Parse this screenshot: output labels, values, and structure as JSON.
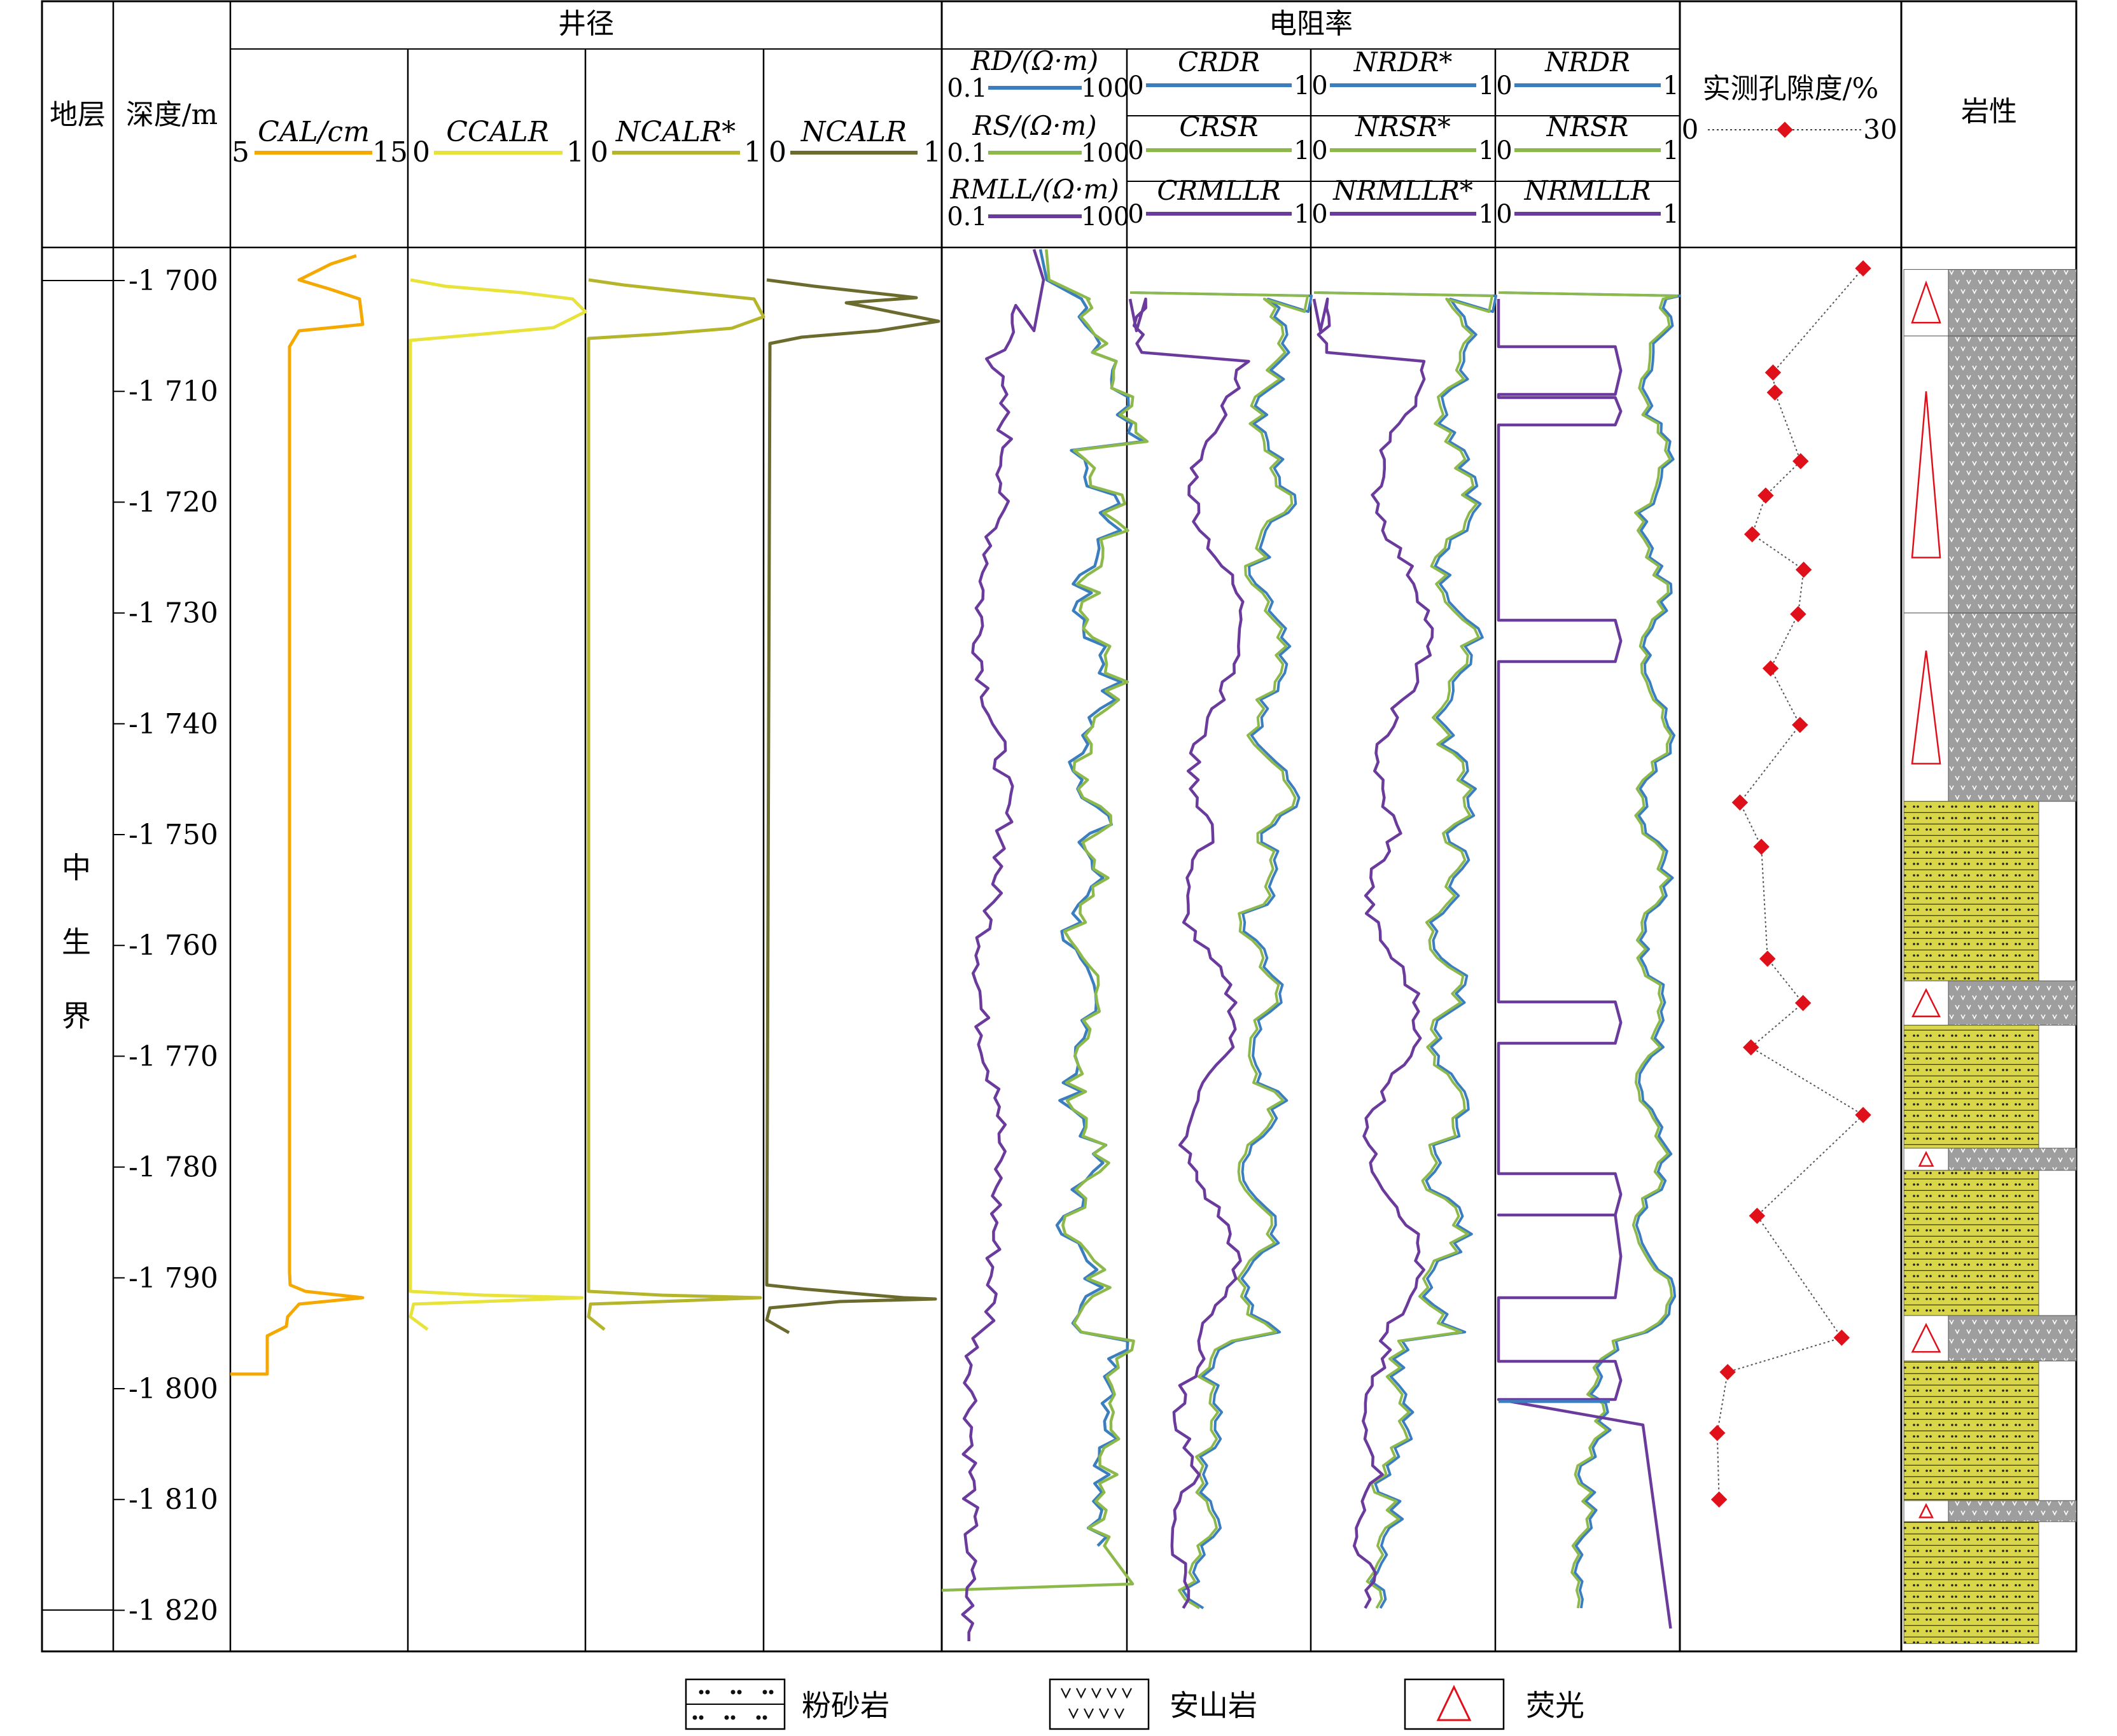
{
  "header": {
    "strata_title": "地层",
    "depth_title": "深度/m",
    "caliper_group_title": "井径",
    "resistivity_group_title": "电阻率",
    "porosity_title": "实测孔隙度/%",
    "porosity_min": "0",
    "porosity_max": "30",
    "lithology_title": "岩性"
  },
  "tracks": {
    "cal": {
      "label": "CAL/cm",
      "min": "5",
      "max": "15",
      "color": "#F5A800"
    },
    "ccalr": {
      "label": "CCALR",
      "min": "0",
      "max": "1",
      "color": "#E7E33A"
    },
    "ncalr_star": {
      "label": "NCALR*",
      "min": "0",
      "max": "1",
      "color": "#B5B52C"
    },
    "ncalr": {
      "label": "NCALR",
      "min": "0",
      "max": "1",
      "color": "#6B6B2E"
    },
    "raw": [
      {
        "label": "RD/(Ω·m)",
        "min": "0.1",
        "max": "100",
        "color": "#3B7EC0"
      },
      {
        "label": "RS/(Ω·m)",
        "min": "0.1",
        "max": "100",
        "color": "#8DB94B"
      },
      {
        "label": "RMLL/(Ω·m)",
        "min": "0.1",
        "max": "100",
        "color": "#6A3A9C"
      }
    ],
    "c": [
      {
        "label": "CRDR",
        "min": "0",
        "max": "1"
      },
      {
        "label": "CRSR",
        "min": "0",
        "max": "1"
      },
      {
        "label": "CRMLLR",
        "min": "0",
        "max": "1"
      }
    ],
    "nstar": [
      {
        "label": "NRDR*",
        "min": "0",
        "max": "1"
      },
      {
        "label": "NRSR*",
        "min": "0",
        "max": "1"
      },
      {
        "label": "NRMLLR*",
        "min": "0",
        "max": "1"
      }
    ],
    "n": [
      {
        "label": "NRDR",
        "min": "0",
        "max": "1"
      },
      {
        "label": "NRSR",
        "min": "0",
        "max": "1"
      },
      {
        "label": "NRMLLR",
        "min": "0",
        "max": "1"
      }
    ]
  },
  "stratum": {
    "chars": [
      "中",
      "生",
      "界"
    ]
  },
  "legend": {
    "siltstone": "粉砂岩",
    "andesite": "安山岩",
    "fluorescence": "荧光"
  },
  "chart_data": {
    "type": "line",
    "depth_range": [
      1697,
      1822
    ],
    "depth_ticks": [
      {
        "value": 1700,
        "label": "-1 700"
      },
      {
        "value": 1710,
        "label": "-1 710"
      },
      {
        "value": 1720,
        "label": "-1 720"
      },
      {
        "value": 1730,
        "label": "-1 730"
      },
      {
        "value": 1740,
        "label": "-1 740"
      },
      {
        "value": 1750,
        "label": "-1 750"
      },
      {
        "value": 1760,
        "label": "-1 760"
      },
      {
        "value": 1770,
        "label": "-1 770"
      },
      {
        "value": 1780,
        "label": "-1 780"
      },
      {
        "value": 1790,
        "label": "-1 790"
      },
      {
        "value": 1800,
        "label": "-1 800"
      },
      {
        "value": 1810,
        "label": "-1 810"
      },
      {
        "value": 1820,
        "label": "-1 820"
      }
    ],
    "porosity": {
      "range": [
        0,
        30
      ],
      "points": [
        {
          "depth": 1698.9,
          "value": 27.2
        },
        {
          "depth": 1708.3,
          "value": 12.5
        },
        {
          "depth": 1710.1,
          "value": 12.8
        },
        {
          "depth": 1716.3,
          "value": 17.0
        },
        {
          "depth": 1719.4,
          "value": 11.3
        },
        {
          "depth": 1722.9,
          "value": 9.1
        },
        {
          "depth": 1726.1,
          "value": 17.5
        },
        {
          "depth": 1730.1,
          "value": 16.6
        },
        {
          "depth": 1735.0,
          "value": 12.1
        },
        {
          "depth": 1740.1,
          "value": 16.9
        },
        {
          "depth": 1747.1,
          "value": 7.1
        },
        {
          "depth": 1751.1,
          "value": 10.6
        },
        {
          "depth": 1761.2,
          "value": 11.6
        },
        {
          "depth": 1765.2,
          "value": 17.4
        },
        {
          "depth": 1769.2,
          "value": 8.9
        },
        {
          "depth": 1775.3,
          "value": 27.2
        },
        {
          "depth": 1784.4,
          "value": 9.9
        },
        {
          "depth": 1795.4,
          "value": 23.7
        },
        {
          "depth": 1798.5,
          "value": 5.1
        },
        {
          "depth": 1804.0,
          "value": 3.4
        },
        {
          "depth": 1810.0,
          "value": 3.7
        }
      ]
    },
    "lithology": [
      {
        "top": 1699.0,
        "bottom": 1705.0,
        "type": "andesite",
        "fluorescence": true
      },
      {
        "top": 1705.0,
        "bottom": 1730.0,
        "type": "andesite",
        "fluorescence": true
      },
      {
        "top": 1730.0,
        "bottom": 1747.0,
        "type": "andesite",
        "fluorescence": true
      },
      {
        "top": 1747.0,
        "bottom": 1763.2,
        "type": "siltstone",
        "fluorescence": false
      },
      {
        "top": 1763.2,
        "bottom": 1767.2,
        "type": "andesite",
        "fluorescence": true
      },
      {
        "top": 1767.2,
        "bottom": 1778.3,
        "type": "siltstone",
        "fluorescence": false
      },
      {
        "top": 1778.3,
        "bottom": 1780.3,
        "type": "andesite",
        "fluorescence": true
      },
      {
        "top": 1780.3,
        "bottom": 1793.4,
        "type": "siltstone",
        "fluorescence": false
      },
      {
        "top": 1793.4,
        "bottom": 1797.5,
        "type": "andesite",
        "fluorescence": true
      },
      {
        "top": 1797.5,
        "bottom": 1810.1,
        "type": "siltstone",
        "fluorescence": false
      },
      {
        "top": 1810.1,
        "bottom": 1812.0,
        "type": "andesite",
        "fluorescence": true
      },
      {
        "top": 1812.0,
        "bottom": 1823.0,
        "type": "siltstone",
        "fluorescence": false
      }
    ]
  }
}
